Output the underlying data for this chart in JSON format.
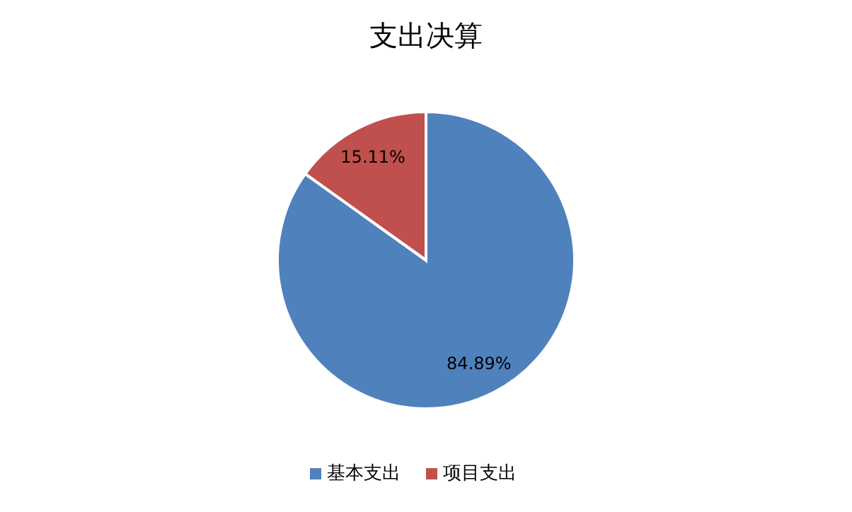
{
  "chart_data": {
    "type": "pie",
    "title": "支出决算",
    "categories": [
      "基本支出",
      "项目支出"
    ],
    "values": [
      84.89,
      15.11
    ],
    "colors": [
      "#4f81bd",
      "#c0504d"
    ],
    "value_labels": [
      "84.89%",
      "15.11%"
    ],
    "legend": "bottom"
  }
}
